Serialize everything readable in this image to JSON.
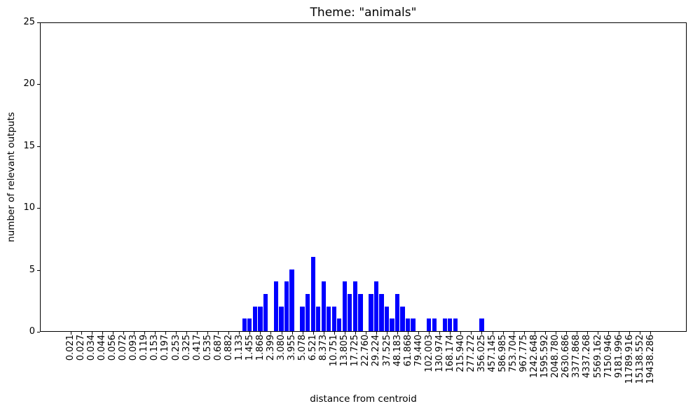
{
  "chart_data": {
    "type": "bar",
    "title": "Theme: \"animals\"",
    "xlabel": "distance from centroid",
    "ylabel": "number of relevant outputs",
    "ylim": [
      0,
      25
    ],
    "yticks": [
      0,
      5,
      10,
      15,
      20,
      25
    ],
    "grid": false,
    "legend": "none",
    "bar_color": "#0000ff",
    "bins_per_labeled_tick": 2,
    "x_tick_labels": [
      "0.021",
      "0.027",
      "0.034",
      "0.044",
      "0.056",
      "0.072",
      "0.093",
      "0.119",
      "0.153",
      "0.197",
      "0.253",
      "0.325",
      "0.417",
      "0.535",
      "0.687",
      "0.882",
      "1.133",
      "1.455",
      "1.868",
      "2.399",
      "3.080",
      "3.955",
      "5.078",
      "6.521",
      "8.373",
      "10.751",
      "13.805",
      "17.725",
      "22.760",
      "29.224",
      "37.525",
      "48.183",
      "61.868",
      "79.440",
      "102.003",
      "130.974",
      "168.174",
      "215.940",
      "277.272",
      "356.025",
      "457.145",
      "586.985",
      "753.704",
      "967.775",
      "1242.648",
      "1595.592",
      "2048.780",
      "2630.686",
      "3377.868",
      "4337.268",
      "5569.162",
      "7150.946",
      "9181.996",
      "11789.916",
      "15138.552",
      "19438.286"
    ],
    "values": [
      0,
      0,
      0,
      0,
      0,
      0,
      0,
      0,
      0,
      0,
      0,
      0,
      0,
      0,
      0,
      0,
      0,
      0,
      0,
      0,
      0,
      0,
      0,
      0,
      0,
      0,
      0,
      0,
      0,
      0,
      0,
      0,
      0,
      1,
      1,
      2,
      2,
      3,
      0,
      4,
      2,
      4,
      5,
      0,
      2,
      3,
      6,
      2,
      4,
      2,
      2,
      1,
      4,
      3,
      4,
      3,
      0,
      3,
      4,
      3,
      2,
      1,
      3,
      2,
      1,
      1,
      0,
      0,
      1,
      1,
      0,
      1,
      1,
      1,
      0,
      0,
      0,
      0,
      1,
      0,
      0,
      0,
      0,
      0,
      0,
      0,
      0,
      0,
      0,
      0,
      0,
      0,
      0,
      0,
      0,
      0,
      0,
      0,
      0,
      0,
      0,
      0,
      0,
      0,
      0,
      0,
      0,
      0,
      0,
      0,
      0,
      0
    ]
  }
}
